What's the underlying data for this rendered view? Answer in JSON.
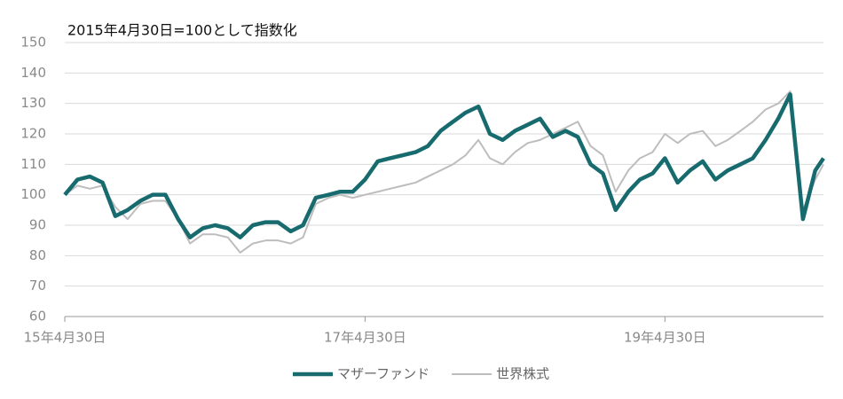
{
  "chart_data": {
    "type": "line",
    "annotation": "2015年4月30日=100として指数化",
    "x": [
      "2015-04-30",
      "2015-05-31",
      "2015-06-30",
      "2015-07-31",
      "2015-08-31",
      "2015-09-30",
      "2015-10-31",
      "2015-11-30",
      "2015-12-31",
      "2016-01-31",
      "2016-02-29",
      "2016-03-31",
      "2016-04-30",
      "2016-05-31",
      "2016-06-30",
      "2016-07-31",
      "2016-08-31",
      "2016-09-30",
      "2016-10-31",
      "2016-11-30",
      "2016-12-31",
      "2017-01-31",
      "2017-02-28",
      "2017-03-31",
      "2017-04-30",
      "2017-05-31",
      "2017-06-30",
      "2017-07-31",
      "2017-08-31",
      "2017-09-30",
      "2017-10-31",
      "2017-11-30",
      "2017-12-31",
      "2018-01-31",
      "2018-02-28",
      "2018-03-31",
      "2018-04-30",
      "2018-05-31",
      "2018-06-30",
      "2018-07-31",
      "2018-08-31",
      "2018-09-30",
      "2018-10-31",
      "2018-11-30",
      "2018-12-31",
      "2019-01-31",
      "2019-02-28",
      "2019-03-31",
      "2019-04-30",
      "2019-05-31",
      "2019-06-30",
      "2019-07-31",
      "2019-08-31",
      "2019-09-30",
      "2019-10-31",
      "2019-11-30",
      "2019-12-31",
      "2020-01-31",
      "2020-02-29",
      "2020-03-31",
      "2020-04-30",
      "2020-05-20"
    ],
    "series": [
      {
        "name": "世界株式",
        "color": "#bdbdbd",
        "width": 2,
        "values": [
          100,
          103,
          102,
          103,
          96,
          92,
          97,
          98,
          98,
          92,
          84,
          87,
          87,
          86,
          81,
          84,
          85,
          85,
          84,
          86,
          97,
          99,
          100,
          99,
          100,
          101,
          102,
          103,
          104,
          106,
          108,
          110,
          113,
          118,
          112,
          110,
          114,
          117,
          118,
          120,
          122,
          124,
          116,
          113,
          101,
          108,
          112,
          114,
          120,
          117,
          120,
          121,
          116,
          118,
          121,
          124,
          128,
          130,
          134,
          95,
          105,
          110
        ]
      },
      {
        "name": "マザーファンド",
        "color": "#176b6e",
        "width": 4.5,
        "values": [
          100,
          105,
          106,
          104,
          93,
          95,
          98,
          100,
          100,
          92,
          86,
          89,
          90,
          89,
          86,
          90,
          91,
          91,
          88,
          90,
          99,
          100,
          101,
          101,
          105,
          111,
          112,
          113,
          114,
          116,
          121,
          124,
          127,
          129,
          120,
          118,
          121,
          123,
          125,
          119,
          121,
          119,
          110,
          107,
          95,
          101,
          105,
          107,
          112,
          104,
          108,
          111,
          105,
          108,
          110,
          112,
          118,
          125,
          133,
          92,
          108,
          112
        ]
      }
    ],
    "xlim": [
      "2015-04-30",
      "2020-05-20"
    ],
    "xticks": [
      {
        "value": "2015-04-30",
        "label": "15年4月30日"
      },
      {
        "value": "2017-04-30",
        "label": "17年4月30日"
      },
      {
        "value": "2019-04-30",
        "label": "19年4月30日"
      }
    ],
    "ylim": [
      60,
      150
    ],
    "yticks": [
      60,
      70,
      80,
      90,
      100,
      110,
      120,
      130,
      140,
      150
    ],
    "grid": true
  }
}
